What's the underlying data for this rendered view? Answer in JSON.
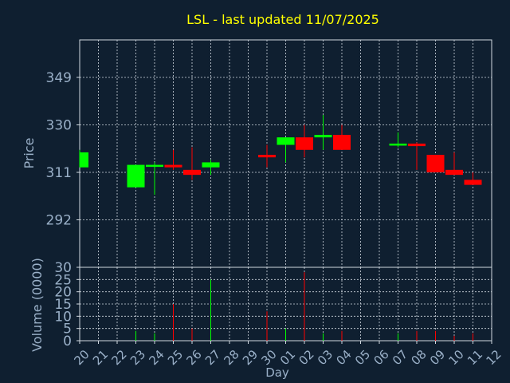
{
  "chart_data": {
    "type": "candlestick",
    "title": "LSL - last updated 11/07/2025",
    "xlabel": "Day",
    "price_panel": {
      "ylabel": "Price",
      "ylim": [
        273,
        364
      ],
      "yticks": [
        292,
        311,
        330,
        349
      ]
    },
    "volume_panel": {
      "ylabel": "Volume (0000)",
      "ylim": [
        0,
        30
      ],
      "yticks": [
        0,
        5,
        10,
        15,
        20,
        25,
        30
      ]
    },
    "x_tick_labels": [
      "20",
      "21",
      "22",
      "23",
      "24",
      "25",
      "26",
      "27",
      "28",
      "29",
      "30",
      "01",
      "02",
      "03",
      "04",
      "05",
      "06",
      "07",
      "08",
      "09",
      "10",
      "11",
      "12"
    ],
    "grid": true,
    "colors": {
      "background": "#0f1f30",
      "title": "#ffff00",
      "axis_text": "#9ab0c8",
      "grid": "#d0d8e0",
      "up": "#00ff00",
      "down": "#ff0000"
    },
    "candles": [
      {
        "day": "20",
        "open": 313,
        "high": 320,
        "low": 313,
        "close": 319,
        "volume": 0
      },
      {
        "day": "23",
        "open": 305,
        "high": 314,
        "low": 305,
        "close": 314,
        "volume": 4
      },
      {
        "day": "24",
        "open": 313.5,
        "high": 315,
        "low": 302,
        "close": 314,
        "volume": 3
      },
      {
        "day": "25",
        "open": 314,
        "high": 320,
        "low": 312,
        "close": 313,
        "volume": 15
      },
      {
        "day": "26",
        "open": 312,
        "high": 321,
        "low": 308,
        "close": 310,
        "volume": 5
      },
      {
        "day": "27",
        "open": 313,
        "high": 316,
        "low": 310,
        "close": 315,
        "volume": 25
      },
      {
        "day": "30",
        "open": 318,
        "high": 322,
        "low": 313,
        "close": 317,
        "volume": 12
      },
      {
        "day": "01",
        "open": 322,
        "high": 325,
        "low": 315,
        "close": 325,
        "volume": 5
      },
      {
        "day": "02",
        "open": 325,
        "high": 330,
        "low": 317,
        "close": 320,
        "volume": 28
      },
      {
        "day": "03",
        "open": 325,
        "high": 334,
        "low": 320,
        "close": 326,
        "volume": 3
      },
      {
        "day": "04",
        "open": 326,
        "high": 330,
        "low": 320,
        "close": 320,
        "volume": 4
      },
      {
        "day": "07",
        "open": 322,
        "high": 327,
        "low": 321,
        "close": 322.5,
        "volume": 3
      },
      {
        "day": "08",
        "open": 322.5,
        "high": 323,
        "low": 312,
        "close": 321.5,
        "volume": 4
      },
      {
        "day": "09",
        "open": 318,
        "high": 318,
        "low": 311,
        "close": 311,
        "volume": 4
      },
      {
        "day": "10",
        "open": 312,
        "high": 319,
        "low": 310,
        "close": 310,
        "volume": 2
      },
      {
        "day": "11",
        "open": 308,
        "high": 311,
        "low": 306,
        "close": 306,
        "volume": 3
      }
    ]
  }
}
